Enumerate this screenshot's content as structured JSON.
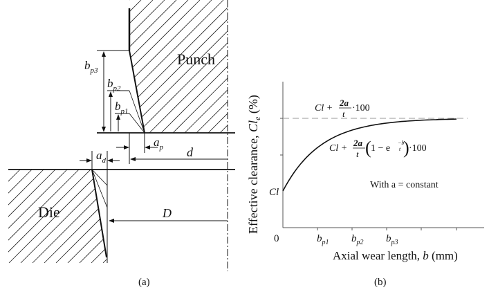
{
  "panel_a": {
    "caption": "(a)",
    "punch_label": "Punch",
    "die_label": "Die",
    "dims": {
      "bp3": "b",
      "bp3_sub": "p3",
      "bp2": "b",
      "bp2_sub": "p2",
      "bp1": "b",
      "bp1_sub": "p1",
      "ap": "a",
      "ap_sub": "p",
      "ad": "a",
      "ad_sub": "d",
      "d": "d",
      "D": "D"
    }
  },
  "panel_b": {
    "caption": "(b)",
    "ylabel": "Effective clearance, ",
    "ylabel_sym": "Cl",
    "ylabel_sub": "e",
    "ylabel_unit": " (%)",
    "xlabel": "Axial wear length, ",
    "xlabel_sym": "b",
    "xlabel_unit": " (mm)",
    "origin": "0",
    "y_start_label": "Cl",
    "xticks": [
      {
        "b": "b",
        "sub": "p1"
      },
      {
        "b": "b",
        "sub": "p2"
      },
      {
        "b": "b",
        "sub": "p3"
      }
    ],
    "asymptote_formula": {
      "lhs": "Cl + ",
      "num": "2a",
      "den": "t",
      "rhs": "·100"
    },
    "curve_formula": {
      "lhs": "Cl + ",
      "num": "2a",
      "den": "t",
      "mid": "1 − e",
      "exp_num": "−b",
      "exp_den": "t",
      "rhs": "·100"
    },
    "note": "With a = constant",
    "colors": {
      "line": "#111111",
      "dashed": "#999999"
    }
  }
}
